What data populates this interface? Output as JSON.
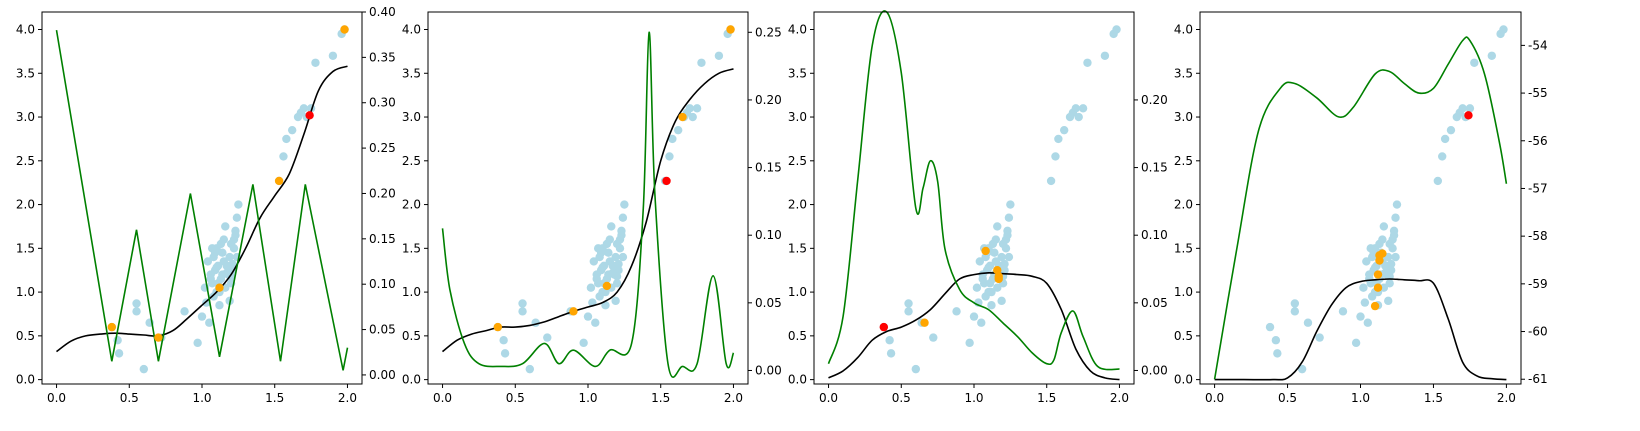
{
  "chart_data": [
    {
      "type": "scatter",
      "panel": 1,
      "xlim": [
        -0.1,
        2.1
      ],
      "ylim_left": [
        -0.05,
        4.2
      ],
      "ylim_right": [
        -0.01,
        0.4
      ],
      "x_ticks": [
        "0.0",
        "0.5",
        "1.0",
        "1.5",
        "2.0"
      ],
      "y_ticks_left": [
        "0.0",
        "0.5",
        "1.0",
        "1.5",
        "2.0",
        "2.5",
        "3.0",
        "3.5",
        "4.0"
      ],
      "y_ticks_right": [
        "0.00",
        "0.05",
        "0.10",
        "0.15",
        "0.20",
        "0.25",
        "0.30",
        "0.35",
        "0.40"
      ],
      "mean_line": {
        "x": [
          0,
          0.1,
          0.2,
          0.3,
          0.4,
          0.5,
          0.6,
          0.7,
          0.8,
          0.9,
          1.0,
          1.1,
          1.2,
          1.3,
          1.4,
          1.5,
          1.6,
          1.7,
          1.8,
          1.9,
          2.0
        ],
        "y": [
          0.32,
          0.44,
          0.5,
          0.52,
          0.53,
          0.52,
          0.51,
          0.5,
          0.56,
          0.7,
          0.85,
          1.0,
          1.2,
          1.5,
          1.85,
          2.1,
          2.35,
          2.8,
          3.3,
          3.52,
          3.58
        ]
      },
      "acquisition": {
        "x": [
          0,
          0.38,
          0.55,
          0.7,
          0.92,
          1.12,
          1.35,
          1.54,
          1.71,
          1.97,
          2.0
        ],
        "y": [
          0.38,
          0.015,
          0.16,
          0.015,
          0.2,
          0.02,
          0.21,
          0.015,
          0.21,
          0.005,
          0.03
        ]
      },
      "observed": {
        "x": [
          0.38,
          0.7,
          1.12,
          1.53,
          1.98
        ],
        "y": [
          0.6,
          0.48,
          1.05,
          2.27,
          4.0
        ]
      },
      "next_point": {
        "x": [
          1.74
        ],
        "y": [
          3.02
        ]
      }
    },
    {
      "type": "scatter",
      "panel": 2,
      "xlim": [
        -0.1,
        2.1
      ],
      "ylim_left": [
        -0.05,
        4.2
      ],
      "ylim_right": [
        -0.01,
        0.265
      ],
      "x_ticks": [
        "0.0",
        "0.5",
        "1.0",
        "1.5",
        "2.0"
      ],
      "y_ticks_left": [
        "0.0",
        "0.5",
        "1.0",
        "1.5",
        "2.0",
        "2.5",
        "3.0",
        "3.5",
        "4.0"
      ],
      "y_ticks_right": [
        "0.00",
        "0.05",
        "0.10",
        "0.15",
        "0.20",
        "0.25"
      ],
      "mean_line": {
        "x": [
          0,
          0.1,
          0.2,
          0.3,
          0.4,
          0.5,
          0.6,
          0.7,
          0.8,
          0.9,
          1.0,
          1.1,
          1.2,
          1.3,
          1.4,
          1.5,
          1.6,
          1.7,
          1.8,
          1.9,
          2.0
        ],
        "y": [
          0.32,
          0.45,
          0.52,
          0.56,
          0.6,
          0.6,
          0.62,
          0.66,
          0.72,
          0.78,
          0.83,
          0.88,
          1.0,
          1.3,
          1.8,
          2.5,
          2.95,
          3.2,
          3.38,
          3.5,
          3.55
        ]
      },
      "acquisition": {
        "x": [
          0,
          0.05,
          0.15,
          0.25,
          0.4,
          0.55,
          0.7,
          0.8,
          0.9,
          1.05,
          1.15,
          1.3,
          1.38,
          1.42,
          1.46,
          1.55,
          1.65,
          1.75,
          1.86,
          1.95,
          2.0
        ],
        "y": [
          0.105,
          0.06,
          0.02,
          0.005,
          0.003,
          0.005,
          0.02,
          0.005,
          0.015,
          0.003,
          0.015,
          0.02,
          0.12,
          0.25,
          0.13,
          0.005,
          0.003,
          0.005,
          0.07,
          0.005,
          0.013
        ]
      },
      "observed": {
        "x": [
          0.38,
          0.9,
          1.13,
          1.65,
          1.98
        ],
        "y": [
          0.6,
          0.78,
          1.07,
          3.0,
          4.0
        ]
      },
      "next_point": {
        "x": [
          1.54
        ],
        "y": [
          2.27
        ]
      }
    },
    {
      "type": "scatter",
      "panel": 3,
      "xlim": [
        -0.1,
        2.1
      ],
      "ylim_left": [
        -0.05,
        4.2
      ],
      "ylim_right": [
        -0.01,
        0.265
      ],
      "x_ticks": [
        "0.0",
        "0.5",
        "1.0",
        "1.5",
        "2.0"
      ],
      "y_ticks_left": [
        "0.0",
        "0.5",
        "1.0",
        "1.5",
        "2.0",
        "2.5",
        "3.0",
        "3.5",
        "4.0"
      ],
      "y_ticks_right": [
        "0.00",
        "0.05",
        "0.10",
        "0.15",
        "0.20"
      ],
      "mean_line": {
        "x": [
          0,
          0.1,
          0.2,
          0.3,
          0.4,
          0.5,
          0.6,
          0.7,
          0.8,
          0.9,
          1.0,
          1.1,
          1.2,
          1.3,
          1.4,
          1.5,
          1.6,
          1.7,
          1.8,
          1.9,
          2.0
        ],
        "y": [
          0.02,
          0.1,
          0.25,
          0.45,
          0.55,
          0.6,
          0.68,
          0.8,
          0.98,
          1.15,
          1.2,
          1.22,
          1.21,
          1.2,
          1.18,
          1.1,
          0.8,
          0.35,
          0.1,
          0.02,
          0.0
        ]
      },
      "acquisition": {
        "x": [
          0,
          0.1,
          0.2,
          0.3,
          0.4,
          0.5,
          0.6,
          0.65,
          0.7,
          0.75,
          0.8,
          0.9,
          1.0,
          1.1,
          1.2,
          1.3,
          1.4,
          1.5,
          1.55,
          1.6,
          1.68,
          1.75,
          1.85,
          2.0
        ],
        "y": [
          0.005,
          0.04,
          0.14,
          0.24,
          0.265,
          0.22,
          0.12,
          0.135,
          0.155,
          0.14,
          0.09,
          0.06,
          0.05,
          0.045,
          0.035,
          0.025,
          0.013,
          0.005,
          0.008,
          0.028,
          0.044,
          0.025,
          0.003,
          0.001
        ]
      },
      "observed": {
        "x": [
          0.66,
          1.08,
          1.16,
          1.17,
          1.17
        ],
        "y": [
          0.65,
          1.47,
          1.25,
          1.18,
          1.15
        ]
      },
      "next_point": {
        "x": [
          0.38
        ],
        "y": [
          0.6
        ]
      }
    },
    {
      "type": "scatter",
      "panel": 4,
      "xlim": [
        -0.1,
        2.1
      ],
      "ylim_left": [
        -0.05,
        4.2
      ],
      "ylim_right": [
        -61.1,
        -53.3
      ],
      "x_ticks": [
        "0.0",
        "0.5",
        "1.0",
        "1.5",
        "2.0"
      ],
      "y_ticks_left": [
        "0.0",
        "0.5",
        "1.0",
        "1.5",
        "2.0",
        "2.5",
        "3.0",
        "3.5",
        "4.0"
      ],
      "y_ticks_right": [
        "-61",
        "-60",
        "-59",
        "-58",
        "-57",
        "-56",
        "-55",
        "-54"
      ],
      "mean_line": {
        "x": [
          0,
          0.2,
          0.4,
          0.5,
          0.6,
          0.7,
          0.8,
          0.9,
          1.0,
          1.1,
          1.2,
          1.3,
          1.4,
          1.5,
          1.6,
          1.7,
          1.8,
          1.9,
          2.0
        ],
        "y": [
          0.0,
          0.0,
          0.0,
          0.02,
          0.2,
          0.55,
          0.85,
          1.05,
          1.12,
          1.14,
          1.15,
          1.14,
          1.13,
          1.1,
          0.7,
          0.2,
          0.04,
          0.01,
          0.0
        ]
      },
      "acquisition": {
        "x": [
          0,
          0.15,
          0.3,
          0.45,
          0.55,
          0.7,
          0.85,
          0.95,
          1.1,
          1.2,
          1.3,
          1.4,
          1.5,
          1.6,
          1.7,
          1.75,
          1.85,
          1.95,
          2.0
        ],
        "y": [
          -61.0,
          -58.3,
          -55.8,
          -54.9,
          -54.8,
          -55.1,
          -55.5,
          -55.3,
          -54.6,
          -54.55,
          -54.8,
          -55.0,
          -54.9,
          -54.4,
          -53.9,
          -53.9,
          -54.6,
          -56.0,
          -56.9
        ]
      },
      "observed": {
        "x": [
          1.1,
          1.12,
          1.12,
          1.13,
          1.13,
          1.15
        ],
        "y": [
          0.84,
          1.05,
          1.2,
          1.36,
          1.42,
          1.44
        ]
      },
      "next_point": {
        "x": [
          1.74
        ],
        "y": [
          3.02
        ]
      }
    }
  ],
  "shared_points": {
    "x": [
      0.38,
      0.42,
      0.43,
      0.55,
      0.55,
      0.6,
      0.64,
      0.72,
      0.88,
      0.97,
      1.0,
      1.02,
      1.04,
      1.06,
      1.07,
      1.08,
      1.09,
      1.1,
      1.11,
      1.12,
      1.13,
      1.14,
      1.15,
      1.16,
      1.17,
      1.18,
      1.19,
      1.2,
      1.21,
      1.22,
      1.23,
      1.24,
      1.25,
      1.08,
      1.12,
      1.16,
      1.2,
      1.05,
      1.1,
      1.14,
      1.18,
      1.22,
      1.06,
      1.1,
      1.15,
      1.2,
      1.24,
      1.09,
      1.13,
      1.17,
      1.21,
      1.11,
      1.19,
      1.03,
      1.07,
      1.23,
      1.53,
      1.56,
      1.58,
      1.62,
      1.66,
      1.68,
      1.7,
      1.72,
      1.75,
      1.78,
      1.9,
      1.96,
      1.98
    ],
    "y": [
      0.6,
      0.45,
      0.3,
      0.87,
      0.78,
      0.12,
      0.65,
      0.48,
      0.78,
      0.42,
      0.72,
      1.05,
      1.35,
      1.2,
      1.1,
      1.4,
      1.25,
      1.5,
      1.3,
      1.0,
      1.15,
      1.45,
      1.6,
      1.75,
      1.3,
      1.2,
      1.4,
      1.55,
      1.25,
      1.6,
      1.7,
      1.85,
      2.0,
      0.95,
      0.85,
      1.05,
      1.1,
      0.65,
      1.0,
      1.2,
      1.3,
      1.5,
      1.15,
      1.28,
      1.35,
      1.18,
      1.4,
      1.45,
      1.55,
      1.22,
      1.32,
      1.1,
      0.9,
      0.88,
      1.5,
      1.65,
      2.27,
      2.55,
      2.75,
      2.85,
      3.0,
      3.05,
      3.1,
      3.0,
      3.1,
      3.62,
      3.7,
      3.95,
      4.0
    ]
  },
  "colors": {
    "scatter": "#add8e6",
    "observed": "#ffa500",
    "next": "#ff0000",
    "mean": "#000000",
    "acquisition": "#008000"
  }
}
